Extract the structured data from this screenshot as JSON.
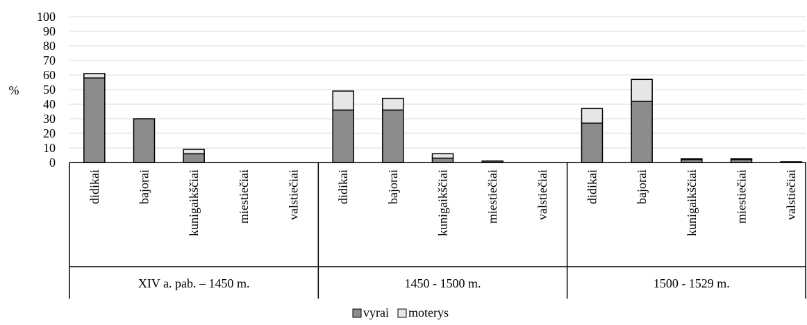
{
  "chart_data": {
    "type": "bar",
    "stacked": true,
    "ylabel": "%",
    "ylim": [
      0,
      100
    ],
    "yticks": [
      0,
      10,
      20,
      30,
      40,
      50,
      60,
      70,
      80,
      90,
      100
    ],
    "grid": true,
    "legend_position": "bottom",
    "groups": [
      {
        "label": "XIV a. pab. – 1450 m.",
        "categories": [
          "didikai",
          "bajorai",
          "kunigaikščiai",
          "miestiečiai",
          "valstiečiai"
        ]
      },
      {
        "label": "1450 - 1500 m.",
        "categories": [
          "didikai",
          "bajorai",
          "kunigaikščiai",
          "miestiečiai",
          "valstiečiai"
        ]
      },
      {
        "label": "1500 - 1529 m.",
        "categories": [
          "didikai",
          "bajorai",
          "kunigaikščiai",
          "miestiečiai",
          "valstiečiai"
        ]
      }
    ],
    "series": [
      {
        "name": "vyrai",
        "color": "#8c8c8c",
        "values": [
          58,
          30,
          6,
          0,
          0,
          36,
          36,
          3,
          1,
          0,
          27,
          42,
          2,
          2,
          0.5
        ]
      },
      {
        "name": "moterys",
        "color": "#e6e6e6",
        "values": [
          3,
          0,
          3,
          0,
          0,
          13,
          8,
          3,
          0,
          0,
          10,
          15,
          0.5,
          0.5,
          0
        ]
      }
    ]
  }
}
